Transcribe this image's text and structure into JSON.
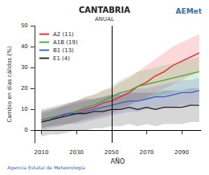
{
  "chart_data": {
    "type": "line",
    "title": "CANTABRIA",
    "subtitle": "ANUAL",
    "logo_text": "AEMet",
    "footer": "Agencia Estatal de Meteorología",
    "xlabel": "AÑO",
    "ylabel": "Cambio en días cálidos (%)",
    "x": [
      2010,
      2015,
      2020,
      2025,
      2030,
      2035,
      2040,
      2045,
      2050,
      2055,
      2060,
      2065,
      2070,
      2075,
      2080,
      2085,
      2090,
      2095,
      2100
    ],
    "series": [
      {
        "name": "A2 (11)",
        "color": "#e8262a",
        "values": [
          5,
          6,
          6,
          8,
          9,
          10,
          11,
          13,
          14,
          16,
          18,
          21,
          23,
          26,
          28,
          31,
          33,
          35,
          37
        ],
        "lower": [
          1,
          2,
          2,
          3,
          4,
          5,
          6,
          7,
          8,
          10,
          12,
          14,
          16,
          18,
          20,
          22,
          24,
          26,
          28
        ],
        "upper": [
          9,
          10,
          11,
          13,
          14,
          16,
          17,
          19,
          20,
          23,
          25,
          28,
          31,
          34,
          37,
          40,
          42,
          44,
          46
        ]
      },
      {
        "name": "A1B (19)",
        "color": "#3faa3f",
        "values": [
          5,
          6,
          7,
          8,
          9,
          11,
          12,
          14,
          16,
          18,
          19,
          21,
          22,
          23,
          24,
          25,
          26,
          27,
          28
        ],
        "lower": [
          1,
          2,
          3,
          3,
          4,
          6,
          7,
          8,
          10,
          11,
          12,
          14,
          15,
          16,
          17,
          18,
          19,
          19,
          20
        ],
        "upper": [
          9,
          10,
          11,
          12,
          14,
          16,
          17,
          19,
          21,
          24,
          26,
          28,
          29,
          30,
          31,
          32,
          33,
          34,
          35
        ]
      },
      {
        "name": "B1 (13)",
        "color": "#3a5fcd",
        "values": [
          4,
          5,
          7,
          8,
          8,
          9,
          10,
          11,
          12,
          13,
          14,
          14,
          15,
          16,
          16,
          17,
          18,
          18,
          19
        ],
        "lower": [
          0,
          1,
          2,
          3,
          3,
          4,
          5,
          6,
          7,
          8,
          9,
          9,
          10,
          10,
          11,
          11,
          12,
          12,
          13
        ],
        "upper": [
          8,
          9,
          11,
          12,
          13,
          14,
          15,
          16,
          17,
          18,
          19,
          20,
          20,
          21,
          22,
          23,
          24,
          24,
          25
        ]
      },
      {
        "name": "E1 (4)",
        "color": "#222222",
        "values": [
          4,
          5,
          6,
          7,
          8,
          8,
          9,
          9,
          10,
          10,
          11,
          10,
          11,
          10,
          11,
          11,
          11,
          12,
          12
        ],
        "lower": [
          -3,
          -2,
          -2,
          -1,
          0,
          0,
          1,
          1,
          2,
          2,
          3,
          2,
          3,
          2,
          3,
          3,
          3,
          4,
          4
        ],
        "upper": [
          10,
          11,
          12,
          13,
          14,
          15,
          15,
          16,
          17,
          17,
          18,
          18,
          18,
          18,
          19,
          19,
          19,
          20,
          20
        ]
      }
    ],
    "xlim": [
      2006,
      2101
    ],
    "ylim": [
      -6,
      50
    ],
    "xticks": [
      2010,
      2030,
      2050,
      2070,
      2090
    ],
    "yticks": [
      0,
      10,
      20,
      30,
      40,
      50
    ],
    "reference_lines": {
      "x": 2050,
      "y": 0
    },
    "legend": "upper left",
    "grid": false
  }
}
